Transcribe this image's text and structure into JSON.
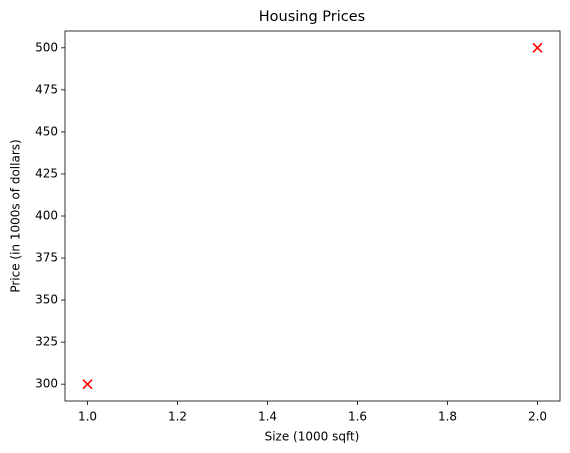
{
  "chart_data": {
    "type": "scatter",
    "title": "Housing Prices",
    "xlabel": "Size (1000 sqft)",
    "ylabel": "Price (in 1000s of dollars)",
    "x": [
      1.0,
      2.0
    ],
    "values": [
      300,
      500
    ],
    "color": "#ff0000",
    "xlim": [
      0.95,
      2.05
    ],
    "ylim": [
      290,
      510
    ],
    "xticks": [
      {
        "value": 1.0,
        "label": "1.0"
      },
      {
        "value": 1.2,
        "label": "1.2"
      },
      {
        "value": 1.4,
        "label": "1.4"
      },
      {
        "value": 1.6,
        "label": "1.6"
      },
      {
        "value": 1.8,
        "label": "1.8"
      },
      {
        "value": 2.0,
        "label": "2.0"
      }
    ],
    "yticks": [
      300,
      325,
      350,
      375,
      400,
      425,
      450,
      475,
      500
    ],
    "grid": false
  }
}
